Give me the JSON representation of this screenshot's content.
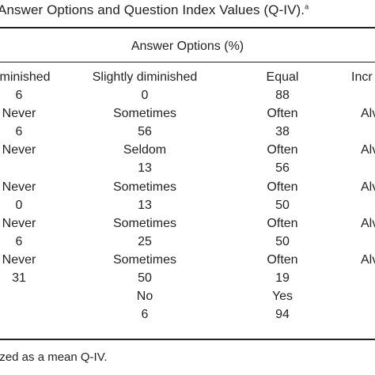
{
  "caption": {
    "text": "Answer Options and Question Index Values (Q-IV).",
    "superscript": "a"
  },
  "group_header": "Answer Options (%)",
  "columns": [
    "Diminished",
    "Slightly diminished",
    "Equal",
    "Incr"
  ],
  "rows": [
    {
      "cells": [
        "6",
        "0",
        "88",
        ""
      ]
    },
    {
      "cells": [
        "Never",
        "Sometimes",
        "Often",
        "Alv"
      ]
    },
    {
      "cells": [
        "6",
        "56",
        "38",
        ""
      ]
    },
    {
      "cells": [
        "Never",
        "Seldom",
        "Often",
        "Alv"
      ]
    },
    {
      "cells": [
        "",
        "13",
        "56",
        ""
      ]
    },
    {
      "cells": [
        "Never",
        "Sometimes",
        "Often",
        "Alv"
      ]
    },
    {
      "cells": [
        "0",
        "13",
        "50",
        ""
      ]
    },
    {
      "cells": [
        "Never",
        "Sometimes",
        "Often",
        "Alv"
      ]
    },
    {
      "cells": [
        "6",
        "25",
        "50",
        ""
      ]
    },
    {
      "cells": [
        "Never",
        "Sometimes",
        "Often",
        "Alv"
      ]
    },
    {
      "cells": [
        "31",
        "50",
        "19",
        ""
      ]
    },
    {
      "cells": [
        "",
        "No",
        "Yes",
        ""
      ]
    },
    {
      "cells": [
        "",
        "6",
        "94",
        ""
      ]
    }
  ],
  "footnote": "ized as a mean Q-IV."
}
